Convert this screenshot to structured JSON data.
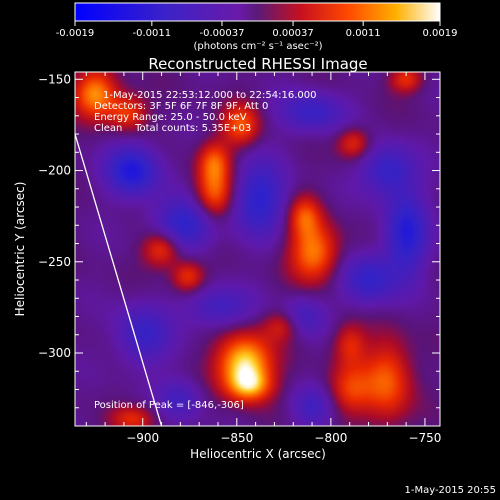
{
  "figure": {
    "footer_timestamp": "1-May-2015 20:55"
  },
  "colorbar": {
    "tick_labels": [
      "-0.0019",
      "-0.0011",
      "-0.00037",
      "0.00037",
      "0.0011",
      "0.0019"
    ],
    "units_label": "(photons cm⁻² s⁻¹ asec⁻²)",
    "range": [
      -0.0019,
      0.0019
    ]
  },
  "chart_data": {
    "type": "heatmap",
    "title": "Reconstructed RHESSI Image",
    "xlabel": "Heliocentric X (arcsec)",
    "ylabel": "Heliocentric Y (arcsec)",
    "xlim": [
      -936,
      -742
    ],
    "ylim": [
      -340,
      -146
    ],
    "x_ticks": [
      -900,
      -850,
      -800,
      -750
    ],
    "y_ticks": [
      -150,
      -200,
      -250,
      -300
    ],
    "x_tick_labels": [
      "−900",
      "−850",
      "−800",
      "−750"
    ],
    "y_tick_labels": [
      "−150",
      "−200",
      "−250",
      "−300"
    ],
    "annotations": [
      "1-May-2015 22:53:12.000 to 22:54:16.000",
      "Detectors: 3F 5F 6F 7F 8F 9F, Att 0",
      "Energy Range: 25.0 - 50.0 keV",
      "Clean    Total counts: 5.35E+03"
    ],
    "peak_label": "Position of Peak = [-846,-306]",
    "peak": {
      "x": -846,
      "y": -306,
      "value": 0.0019
    },
    "limb": [
      [
        -936,
        -180
      ],
      [
        -890,
        -340
      ]
    ],
    "sources": [
      {
        "x": -846,
        "y": -306,
        "amp": 1.0,
        "sx": 10,
        "sy": 11
      },
      {
        "x": -843,
        "y": -318,
        "amp": 0.55,
        "sx": 8,
        "sy": 6
      },
      {
        "x": -770,
        "y": -315,
        "amp": 0.6,
        "sx": 9,
        "sy": 16
      },
      {
        "x": -790,
        "y": -320,
        "amp": 0.45,
        "sx": 8,
        "sy": 10
      },
      {
        "x": -809,
        "y": -245,
        "amp": 0.7,
        "sx": 9,
        "sy": 11
      },
      {
        "x": -814,
        "y": -225,
        "amp": 0.5,
        "sx": 6,
        "sy": 8
      },
      {
        "x": -862,
        "y": -213,
        "amp": 0.6,
        "sx": 7,
        "sy": 10
      },
      {
        "x": -862,
        "y": -195,
        "amp": 0.55,
        "sx": 6,
        "sy": 8
      },
      {
        "x": -848,
        "y": -175,
        "amp": 0.55,
        "sx": 7,
        "sy": 8
      },
      {
        "x": -890,
        "y": -243,
        "amp": 0.55,
        "sx": 7,
        "sy": 7
      },
      {
        "x": -876,
        "y": -258,
        "amp": 0.5,
        "sx": 6,
        "sy": 6
      },
      {
        "x": -925,
        "y": -158,
        "amp": 0.75,
        "sx": 8,
        "sy": 9
      },
      {
        "x": -908,
        "y": -168,
        "amp": 0.5,
        "sx": 7,
        "sy": 7
      },
      {
        "x": -788,
        "y": -185,
        "amp": 0.45,
        "sx": 6,
        "sy": 6
      },
      {
        "x": -760,
        "y": -150,
        "amp": 0.45,
        "sx": 6,
        "sy": 5
      },
      {
        "x": -826,
        "y": -285,
        "amp": 0.35,
        "sx": 7,
        "sy": 6
      },
      {
        "x": -905,
        "y": -336,
        "amp": 0.4,
        "sx": 8,
        "sy": 5
      },
      {
        "x": -790,
        "y": -295,
        "amp": 0.4,
        "sx": 6,
        "sy": 8
      },
      {
        "x": -878,
        "y": -230,
        "amp": -0.55,
        "sx": 12,
        "sy": 10
      },
      {
        "x": -905,
        "y": -200,
        "amp": -0.65,
        "sx": 10,
        "sy": 10
      },
      {
        "x": -838,
        "y": -215,
        "amp": -0.55,
        "sx": 10,
        "sy": 14
      },
      {
        "x": -760,
        "y": -235,
        "amp": -0.6,
        "sx": 8,
        "sy": 16
      },
      {
        "x": -780,
        "y": -260,
        "amp": -0.5,
        "sx": 10,
        "sy": 10
      },
      {
        "x": -770,
        "y": -200,
        "amp": -0.5,
        "sx": 10,
        "sy": 10
      },
      {
        "x": -810,
        "y": -168,
        "amp": -0.45,
        "sx": 12,
        "sy": 8
      },
      {
        "x": -900,
        "y": -290,
        "amp": -0.45,
        "sx": 10,
        "sy": 12
      },
      {
        "x": -860,
        "y": -275,
        "amp": -0.4,
        "sx": 12,
        "sy": 8
      },
      {
        "x": -810,
        "y": -330,
        "amp": -0.35,
        "sx": 8,
        "sy": 8
      },
      {
        "x": -880,
        "y": -325,
        "amp": -0.35,
        "sx": 8,
        "sy": 8
      },
      {
        "x": -815,
        "y": -280,
        "amp": -0.35,
        "sx": 8,
        "sy": 8
      }
    ]
  }
}
